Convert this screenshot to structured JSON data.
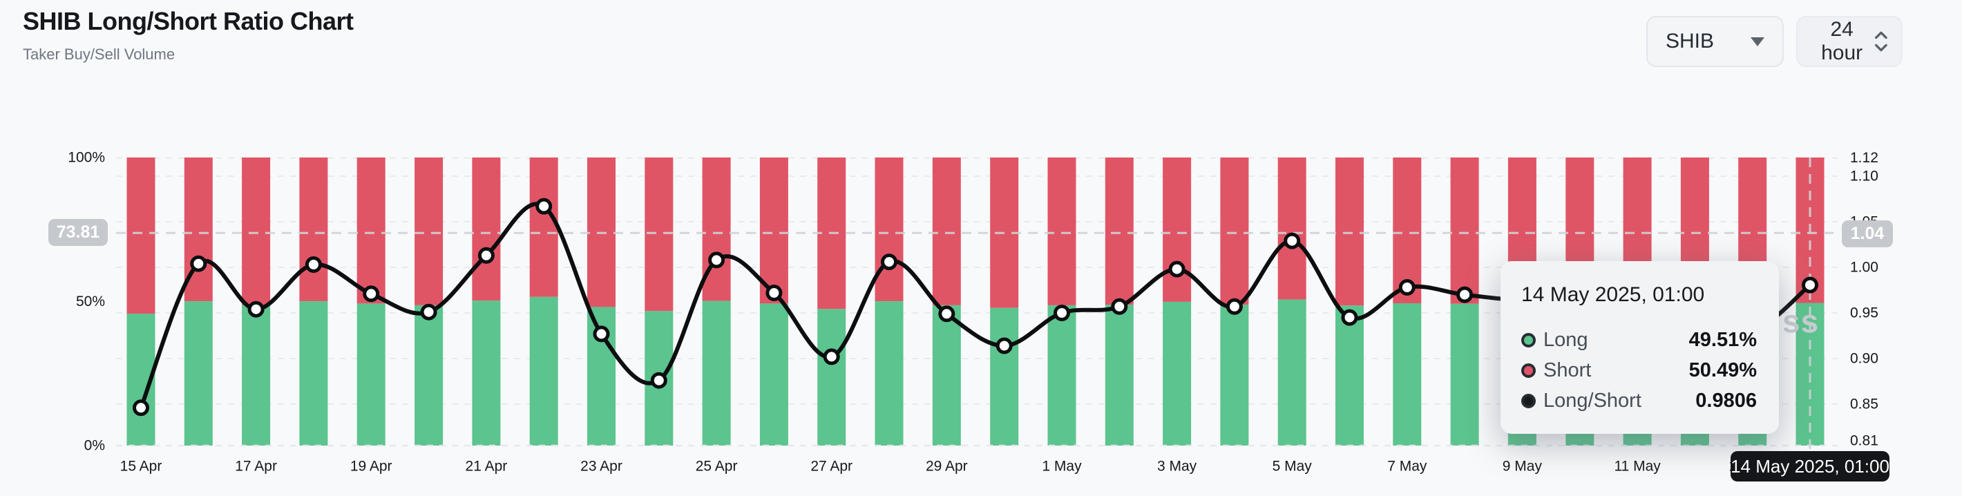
{
  "header": {
    "title": "SHIB Long/Short Ratio Chart",
    "subtitle": "Taker Buy/Sell Volume"
  },
  "controls": {
    "symbol": "SHIB",
    "interval": "24 hour"
  },
  "watermark": "ss",
  "tooltip": {
    "title": "14 May 2025, 01:00",
    "rows": [
      {
        "name": "Long",
        "value": "49.51%",
        "color": "#5cc48e"
      },
      {
        "name": "Short",
        "value": "50.49%",
        "color": "#e05566"
      },
      {
        "name": "Long/Short",
        "value": "0.9806",
        "color": "#17191c"
      }
    ]
  },
  "chart_data": {
    "type": "bar",
    "subtype": "stacked-percent-bars-with-ratio-line",
    "title": "SHIB Long/Short Ratio Chart",
    "categories": [
      "15 Apr",
      "16 Apr",
      "17 Apr",
      "18 Apr",
      "19 Apr",
      "20 Apr",
      "21 Apr",
      "22 Apr",
      "23 Apr",
      "24 Apr",
      "25 Apr",
      "26 Apr",
      "27 Apr",
      "28 Apr",
      "29 Apr",
      "30 Apr",
      "1 May",
      "2 May",
      "3 May",
      "4 May",
      "5 May",
      "6 May",
      "7 May",
      "8 May",
      "9 May",
      "10 May",
      "11 May",
      "12 May",
      "13 May",
      "14 May"
    ],
    "x_tick_labels": [
      "15 Apr",
      "17 Apr",
      "19 Apr",
      "21 Apr",
      "23 Apr",
      "25 Apr",
      "27 Apr",
      "29 Apr",
      "1 May",
      "3 May",
      "5 May",
      "7 May",
      "9 May",
      "11 May",
      "13 May"
    ],
    "x_tick_every": 2,
    "series": [
      {
        "name": "Long",
        "type": "bar",
        "stack": true,
        "unit": "%",
        "color": "#5cc48e",
        "values": [
          45.8,
          50.1,
          48.8,
          50.1,
          49.3,
          48.7,
          50.3,
          51.6,
          48.1,
          46.7,
          50.2,
          49.3,
          47.4,
          50.1,
          48.7,
          47.8,
          48.7,
          48.9,
          49.9,
          48.9,
          50.7,
          48.6,
          49.4,
          49.2,
          49.1,
          49.4,
          48.8,
          48.6,
          48.2,
          49.51
        ]
      },
      {
        "name": "Short",
        "type": "bar",
        "stack": true,
        "unit": "%",
        "color": "#e05566",
        "values": [
          54.2,
          49.9,
          51.2,
          49.9,
          50.7,
          51.3,
          49.7,
          48.4,
          51.9,
          53.3,
          49.8,
          50.7,
          52.6,
          49.9,
          51.3,
          52.2,
          51.3,
          51.1,
          50.1,
          51.1,
          49.3,
          51.4,
          50.6,
          50.8,
          50.9,
          50.6,
          51.2,
          51.4,
          51.8,
          50.49
        ]
      },
      {
        "name": "Long/Short",
        "type": "line",
        "axis": "right",
        "color": "#0c0e10",
        "values": [
          0.846,
          1.004,
          0.954,
          1.003,
          0.971,
          0.951,
          1.013,
          1.067,
          0.927,
          0.876,
          1.008,
          0.972,
          0.902,
          1.006,
          0.949,
          0.914,
          0.95,
          0.957,
          0.998,
          0.957,
          1.029,
          0.945,
          0.978,
          0.97,
          0.965,
          0.975,
          0.955,
          0.945,
          0.93,
          0.9806
        ]
      }
    ],
    "left_axis": {
      "ticks": [
        {
          "label": "100%",
          "value": 100
        },
        {
          "label": "50%",
          "value": 50
        },
        {
          "label": "0%",
          "value": 0
        }
      ],
      "range": [
        0,
        100
      ]
    },
    "right_axis": {
      "ticks": [
        "1.12",
        "1.10",
        "1.05",
        "1.00",
        "0.95",
        "0.90",
        "0.85",
        "0.81"
      ],
      "range": [
        0.805,
        1.121
      ]
    },
    "crosshair": {
      "index": 29,
      "left_label": "73.81",
      "left_value": 73.81,
      "right_label": "1.04",
      "bottom_label": "14 May 2025, 01:00"
    },
    "grid": "horizontal-dashed",
    "legend_position": "none"
  }
}
